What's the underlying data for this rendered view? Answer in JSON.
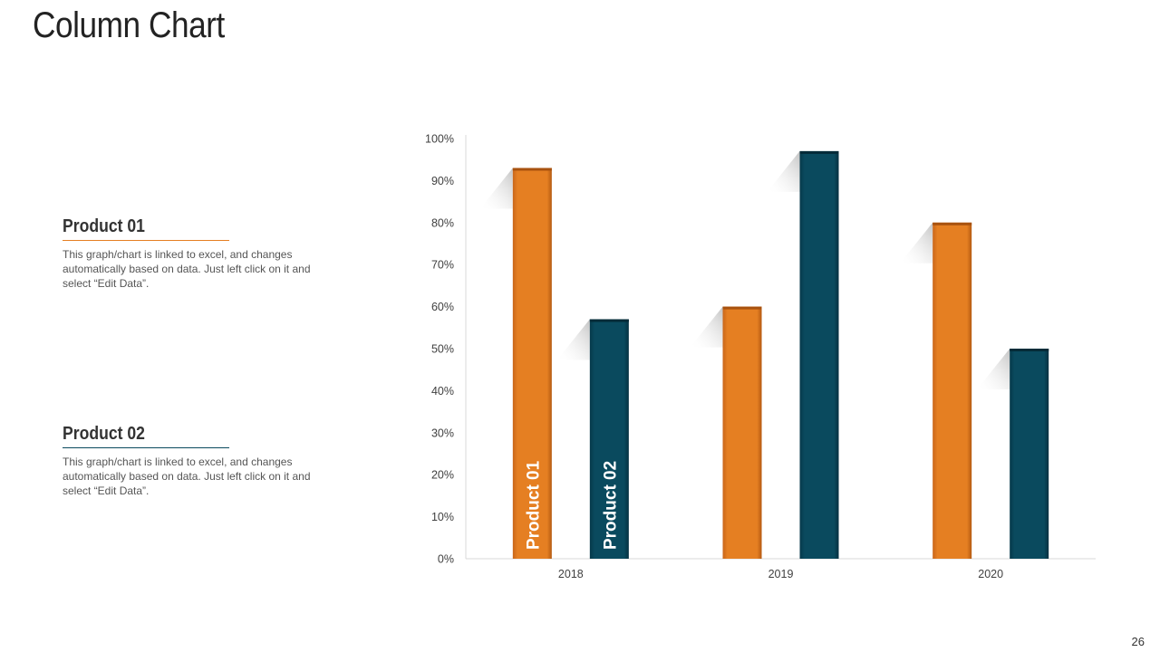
{
  "title": "Column Chart",
  "page_number": "26",
  "legend": [
    {
      "heading": "Product 01",
      "description": "This graph/chart is linked to excel, and changes automatically based on data. Just left click on it and select “Edit Data”.",
      "color": "#e57f22"
    },
    {
      "heading": "Product 02",
      "description": "This graph/chart is linked to excel, and changes automatically based on data. Just left click on it and select “Edit Data”.",
      "color": "#0a4a5e"
    }
  ],
  "chart_data": {
    "type": "bar",
    "categories": [
      "2018",
      "2019",
      "2020"
    ],
    "series": [
      {
        "name": "Product 01",
        "values": [
          93,
          60,
          80
        ],
        "color": "#e57f22"
      },
      {
        "name": "Product 02",
        "values": [
          57,
          97,
          50
        ],
        "color": "#0a4a5e"
      }
    ],
    "title": "",
    "xlabel": "",
    "ylabel": "",
    "ylim": [
      0,
      100
    ],
    "yticks": [
      "0%",
      "10%",
      "20%",
      "30%",
      "40%",
      "50%",
      "60%",
      "70%",
      "80%",
      "90%",
      "100%"
    ],
    "grid": false,
    "legend_placement": "left"
  }
}
